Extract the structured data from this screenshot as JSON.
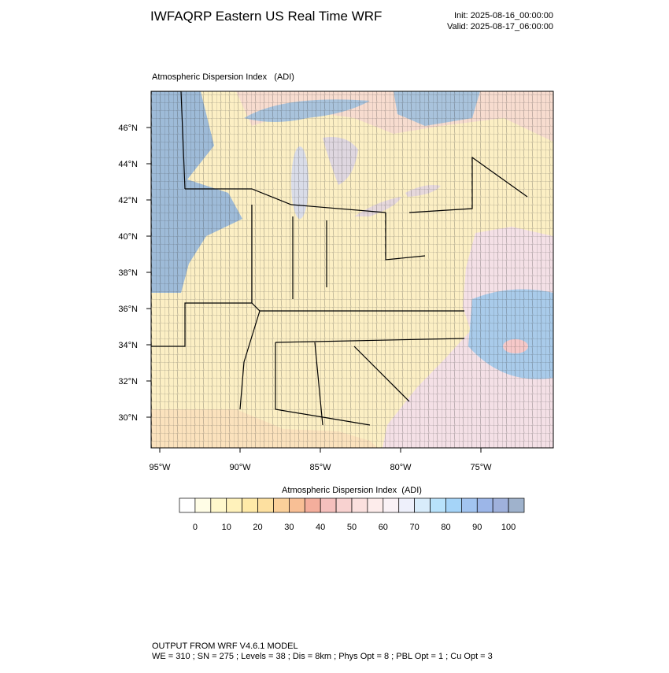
{
  "header": {
    "title": "IWFAQRP Eastern US Real Time WRF",
    "init": "Init: 2025-08-16_00:00:00",
    "valid": "Valid: 2025-08-17_06:00:00"
  },
  "map": {
    "title": "Atmospheric Dispersion Index   (ADI)",
    "lat_labels": [
      "30°N",
      "32°N",
      "34°N",
      "36°N",
      "38°N",
      "40°N",
      "42°N",
      "44°N",
      "46°N"
    ],
    "lon_labels": [
      "95°W",
      "90°W",
      "85°W",
      "80°W",
      "75°W"
    ]
  },
  "colorbar": {
    "title": "Atmospheric Dispersion Index  (ADI)",
    "colors": [
      "#ffffff",
      "#fffde6",
      "#fff8cc",
      "#fff2bb",
      "#ffeaa8",
      "#fde0a0",
      "#fbd09a",
      "#f8bf95",
      "#f4ae9c",
      "#f5c0bd",
      "#f8d2d0",
      "#fbe0de",
      "#fdeceb",
      "#faf2f6",
      "#eef0fb",
      "#d8ecfb",
      "#b8e2fb",
      "#a5d4f8",
      "#a2c4f0",
      "#9cb6e8",
      "#9fb1dc",
      "#9fb2cc"
    ],
    "ticks": [
      0,
      10,
      20,
      30,
      40,
      50,
      60,
      70,
      80,
      90,
      100
    ]
  },
  "footer": {
    "line1": "OUTPUT FROM WRF V4.6.1 MODEL",
    "line2": "WE = 310 ; SN = 275 ; Levels = 38 ; Dis = 8km ; Phys Opt = 8 ; PBL Opt = 1 ; Cu Opt = 3"
  }
}
